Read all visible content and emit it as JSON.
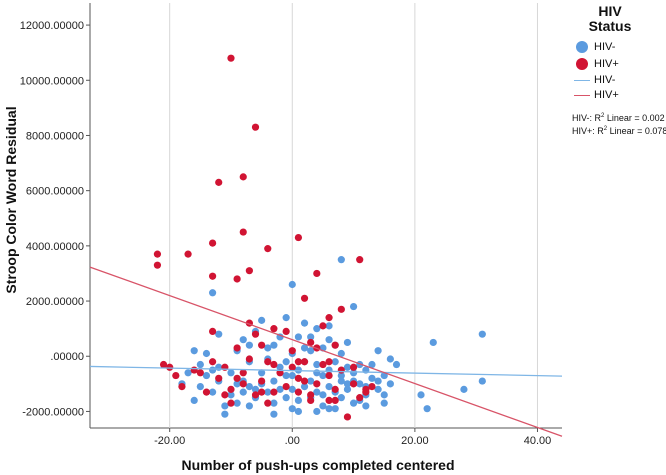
{
  "chart_data": {
    "type": "scatter",
    "xlabel": "Number of push-ups completed centered",
    "ylabel": "Stroop Color Word Residual",
    "xlim": [
      -33,
      44
    ],
    "ylim": [
      -2600,
      12800
    ],
    "x_ticks": [
      -20,
      0,
      20,
      40
    ],
    "x_tick_labels": [
      "-20.00",
      ".00",
      "20.00",
      "40.00"
    ],
    "y_ticks": [
      -2000,
      0,
      2000,
      4000,
      6000,
      8000,
      10000,
      12000
    ],
    "y_tick_labels": [
      "-2000.00000",
      ".00000",
      "2000.00000",
      "4000.00000",
      "6000.00000",
      "8000.00000",
      "10000.00000",
      "12000.00000"
    ],
    "grid": "vertical",
    "legend": {
      "position": "right",
      "title_line1": "HIV",
      "title_line2": "Status",
      "entries": [
        {
          "label": "HIV-",
          "kind": "dot",
          "color": "#5b9bdf"
        },
        {
          "label": "HIV+",
          "kind": "dot",
          "color": "#d11433"
        },
        {
          "label": "HIV-",
          "kind": "line",
          "color": "#7fb6e6"
        },
        {
          "label": "HIV+",
          "kind": "line",
          "color": "#d85468"
        }
      ]
    },
    "annotations": {
      "neg_prefix": "HIV-: R",
      "neg_suffix": " Linear = 0.002",
      "pos_prefix": "HIV+: R",
      "pos_suffix": " Linear = 0.078",
      "sup": "2"
    },
    "series": [
      {
        "name": "HIV-",
        "color": "#5b9bdf",
        "fit_line": {
          "color": "#7fb6e6",
          "x": [
            -33,
            44
          ],
          "y": [
            -370,
            -720
          ]
        },
        "points": [
          [
            -13,
            2300
          ],
          [
            -13,
            -500
          ],
          [
            -14,
            -700
          ],
          [
            -12,
            -400
          ],
          [
            -15,
            -1100
          ],
          [
            -13,
            -1300
          ],
          [
            -11,
            -1800
          ],
          [
            -16,
            -1600
          ],
          [
            -10,
            -1400
          ],
          [
            -14,
            100
          ],
          [
            -12,
            800
          ],
          [
            -9,
            -1700
          ],
          [
            -8,
            -900
          ],
          [
            -8,
            600
          ],
          [
            -7,
            -200
          ],
          [
            -7,
            -1100
          ],
          [
            -6,
            -1500
          ],
          [
            -6,
            900
          ],
          [
            -5,
            -600
          ],
          [
            -5,
            1300
          ],
          [
            -4,
            -1300
          ],
          [
            -4,
            -100
          ],
          [
            -3,
            -1700
          ],
          [
            -3,
            400
          ],
          [
            -2,
            -1200
          ],
          [
            -2,
            -400
          ],
          [
            -1,
            1400
          ],
          [
            -1,
            -700
          ],
          [
            0,
            2600
          ],
          [
            0,
            -1200
          ],
          [
            0,
            100
          ],
          [
            1,
            -1600
          ],
          [
            1,
            -500
          ],
          [
            1,
            700
          ],
          [
            2,
            -1100
          ],
          [
            2,
            -200
          ],
          [
            3,
            -1500
          ],
          [
            3,
            200
          ],
          [
            3,
            -900
          ],
          [
            4,
            -300
          ],
          [
            4,
            -1300
          ],
          [
            4,
            1000
          ],
          [
            5,
            -700
          ],
          [
            5,
            -1800
          ],
          [
            5,
            300
          ],
          [
            6,
            -1100
          ],
          [
            6,
            -500
          ],
          [
            6,
            600
          ],
          [
            7,
            -1300
          ],
          [
            7,
            -200
          ],
          [
            7,
            -1900
          ],
          [
            8,
            3500
          ],
          [
            8,
            -700
          ],
          [
            8,
            100
          ],
          [
            9,
            -1200
          ],
          [
            9,
            -400
          ],
          [
            9,
            500
          ],
          [
            10,
            -900
          ],
          [
            10,
            1800
          ],
          [
            10,
            -1700
          ],
          [
            11,
            -300
          ],
          [
            11,
            -1000
          ],
          [
            12,
            -1400
          ],
          [
            12,
            -500
          ],
          [
            13,
            -800
          ],
          [
            14,
            -1200
          ],
          [
            14,
            200
          ],
          [
            15,
            -700
          ],
          [
            15,
            -1400
          ],
          [
            16,
            -100
          ],
          [
            16,
            -1000
          ],
          [
            17,
            -300
          ],
          [
            21,
            -1400
          ],
          [
            22,
            -1900
          ],
          [
            23,
            500
          ],
          [
            28,
            -1200
          ],
          [
            31,
            800
          ],
          [
            31,
            -900
          ],
          [
            -18,
            -1000
          ],
          [
            -17,
            -600
          ],
          [
            -16,
            200
          ],
          [
            -9,
            200
          ],
          [
            -3,
            -2100
          ],
          [
            2,
            1200
          ],
          [
            6,
            -1900
          ],
          [
            -11,
            -2100
          ],
          [
            -7,
            -1800
          ],
          [
            0,
            -1900
          ],
          [
            4,
            -2000
          ],
          [
            12,
            -1800
          ],
          [
            -1,
            -1500
          ],
          [
            -5,
            -1000
          ],
          [
            8,
            -1500
          ],
          [
            -10,
            -600
          ],
          [
            3,
            700
          ],
          [
            -2,
            700
          ],
          [
            13,
            -300
          ],
          [
            -8,
            -1300
          ],
          [
            7,
            400
          ],
          [
            1,
            -2000
          ],
          [
            -6,
            -1200
          ],
          [
            10,
            -600
          ],
          [
            -12,
            -900
          ],
          [
            5,
            -1400
          ],
          [
            -4,
            300
          ],
          [
            9,
            -1000
          ],
          [
            2,
            300
          ],
          [
            -1,
            -200
          ],
          [
            11,
            -1600
          ],
          [
            6,
            1100
          ],
          [
            15,
            -1700
          ],
          [
            -15,
            -300
          ],
          [
            -9,
            -1000
          ],
          [
            14,
            -900
          ],
          [
            0,
            -700
          ],
          [
            8,
            -900
          ],
          [
            -3,
            -900
          ],
          [
            4,
            -600
          ],
          [
            12,
            -1100
          ],
          [
            -7,
            400
          ]
        ]
      },
      {
        "name": "HIV+",
        "color": "#d11433",
        "fit_line": {
          "color": "#d85468",
          "x": [
            -33,
            44
          ],
          "y": [
            3230,
            -2900
          ]
        },
        "points": [
          [
            -10,
            10800
          ],
          [
            -6,
            8300
          ],
          [
            -8,
            6500
          ],
          [
            -12,
            6300
          ],
          [
            -8,
            4500
          ],
          [
            -22,
            3700
          ],
          [
            -22,
            3300
          ],
          [
            -17,
            3700
          ],
          [
            -13,
            4100
          ],
          [
            -4,
            3900
          ],
          [
            1,
            4300
          ],
          [
            11,
            3500
          ],
          [
            -13,
            2900
          ],
          [
            -7,
            3100
          ],
          [
            -9,
            2800
          ],
          [
            4,
            3000
          ],
          [
            2,
            2100
          ],
          [
            8,
            1700
          ],
          [
            6,
            1400
          ],
          [
            -21,
            -300
          ],
          [
            -19,
            -700
          ],
          [
            -18,
            -1100
          ],
          [
            -16,
            -500
          ],
          [
            -14,
            -1300
          ],
          [
            -13,
            900
          ],
          [
            -13,
            -200
          ],
          [
            -12,
            -800
          ],
          [
            -11,
            -400
          ],
          [
            -10,
            -1200
          ],
          [
            -10,
            -1700
          ],
          [
            -9,
            300
          ],
          [
            -8,
            -600
          ],
          [
            -7,
            -100
          ],
          [
            -6,
            -1400
          ],
          [
            -6,
            800
          ],
          [
            -5,
            400
          ],
          [
            -5,
            -900
          ],
          [
            -4,
            -200
          ],
          [
            -3,
            1000
          ],
          [
            -3,
            -1300
          ],
          [
            -2,
            -600
          ],
          [
            -1,
            -1100
          ],
          [
            0,
            200
          ],
          [
            0,
            -400
          ],
          [
            1,
            -1300
          ],
          [
            1,
            -800
          ],
          [
            2,
            -200
          ],
          [
            3,
            -1600
          ],
          [
            3,
            500
          ],
          [
            4,
            -1000
          ],
          [
            5,
            -300
          ],
          [
            5,
            1100
          ],
          [
            6,
            -700
          ],
          [
            6,
            -1600
          ],
          [
            7,
            -1200
          ],
          [
            7,
            400
          ],
          [
            8,
            -500
          ],
          [
            9,
            -2200
          ],
          [
            10,
            -1000
          ],
          [
            11,
            -1500
          ],
          [
            12,
            -1200
          ],
          [
            13,
            -1100
          ],
          [
            -20,
            -400
          ],
          [
            -4,
            -1700
          ],
          [
            2,
            -900
          ],
          [
            -7,
            1200
          ],
          [
            -1,
            900
          ],
          [
            10,
            -400
          ],
          [
            -15,
            -600
          ],
          [
            4,
            300
          ],
          [
            -11,
            -1400
          ],
          [
            7,
            -1600
          ],
          [
            -3,
            -300
          ],
          [
            12,
            -1300
          ],
          [
            -8,
            -1000
          ],
          [
            1,
            -200
          ],
          [
            -5,
            -1300
          ],
          [
            3,
            -1400
          ],
          [
            -9,
            -800
          ],
          [
            6,
            -200
          ]
        ]
      }
    ]
  }
}
